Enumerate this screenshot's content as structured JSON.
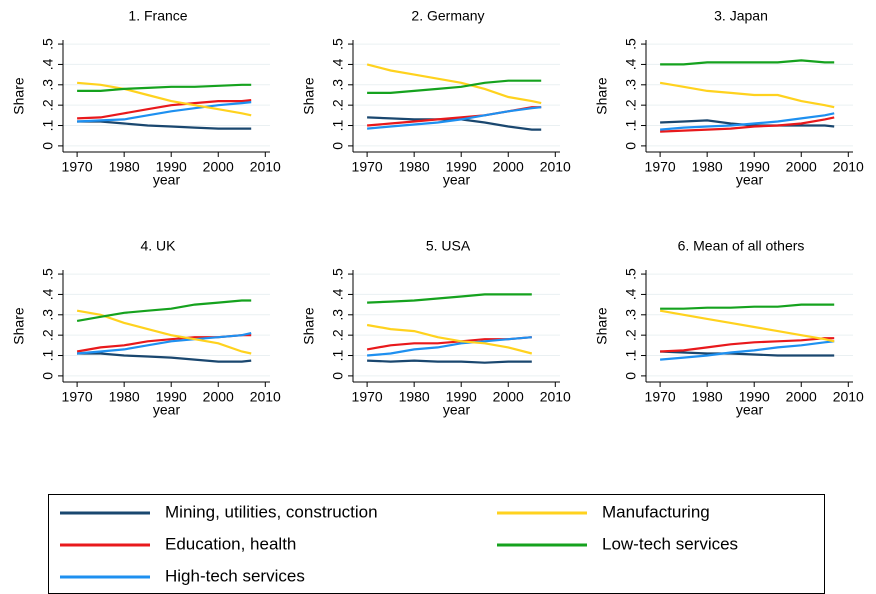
{
  "legend": {
    "items": [
      {
        "name": "Mining, utilities, construction",
        "color": "#1a476f"
      },
      {
        "name": "Education, health",
        "color": "#e8191c"
      },
      {
        "name": "High-tech services",
        "color": "#1e90f0"
      },
      {
        "name": "Manufacturing",
        "color": "#ffd21e"
      },
      {
        "name": "Low-tech services",
        "color": "#15a21e"
      }
    ]
  },
  "chart_data": [
    {
      "type": "line",
      "title": "1. France",
      "x_label": "year",
      "y_label": "Share",
      "x": [
        1970,
        1975,
        1980,
        1985,
        1990,
        1995,
        2000,
        2005,
        2007
      ],
      "xlim": [
        1967,
        2011
      ],
      "xticks": [
        1970,
        1980,
        1990,
        2000,
        2010
      ],
      "ylim": [
        -0.03,
        0.52
      ],
      "yticks": [
        0,
        {
          "value": 0.1,
          "label": ".1"
        },
        {
          "value": 0.2,
          "label": ".2"
        },
        {
          "value": 0.3,
          "label": ".3"
        },
        {
          "value": 0.4,
          "label": ".4"
        },
        {
          "value": 0.5,
          "label": ".5"
        }
      ],
      "grid": true,
      "series": [
        {
          "color": "#1a476f",
          "values": [
            0.12,
            0.12,
            0.11,
            0.1,
            0.095,
            0.09,
            0.085,
            0.085,
            0.085
          ]
        },
        {
          "color": "#e8191c",
          "values": [
            0.135,
            0.14,
            0.16,
            0.18,
            0.2,
            0.21,
            0.22,
            0.22,
            0.225
          ]
        },
        {
          "color": "#1e90f0",
          "values": [
            0.12,
            0.125,
            0.13,
            0.15,
            0.17,
            0.185,
            0.2,
            0.21,
            0.215
          ]
        },
        {
          "color": "#ffd21e",
          "values": [
            0.31,
            0.3,
            0.28,
            0.25,
            0.22,
            0.2,
            0.18,
            0.16,
            0.15
          ]
        },
        {
          "color": "#15a21e",
          "values": [
            0.27,
            0.27,
            0.28,
            0.285,
            0.29,
            0.29,
            0.295,
            0.3,
            0.3
          ]
        }
      ]
    },
    {
      "type": "line",
      "title": "2. Germany",
      "x_label": "year",
      "y_label": "Share",
      "x": [
        1970,
        1975,
        1980,
        1985,
        1990,
        1995,
        2000,
        2005,
        2007
      ],
      "xlim": [
        1967,
        2011
      ],
      "xticks": [
        1970,
        1980,
        1990,
        2000,
        2010
      ],
      "ylim": [
        -0.03,
        0.52
      ],
      "yticks": [
        0,
        {
          "value": 0.1,
          "label": ".1"
        },
        {
          "value": 0.2,
          "label": ".2"
        },
        {
          "value": 0.3,
          "label": ".3"
        },
        {
          "value": 0.4,
          "label": ".4"
        },
        {
          "value": 0.5,
          "label": ".5"
        }
      ],
      "grid": true,
      "series": [
        {
          "color": "#1a476f",
          "values": [
            0.14,
            0.135,
            0.13,
            0.13,
            0.13,
            0.115,
            0.095,
            0.08,
            0.08
          ]
        },
        {
          "color": "#e8191c",
          "values": [
            0.1,
            0.11,
            0.12,
            0.13,
            0.14,
            0.15,
            0.17,
            0.19,
            0.19
          ]
        },
        {
          "color": "#1e90f0",
          "values": [
            0.085,
            0.095,
            0.105,
            0.115,
            0.13,
            0.15,
            0.17,
            0.185,
            0.19
          ]
        },
        {
          "color": "#ffd21e",
          "values": [
            0.4,
            0.37,
            0.35,
            0.33,
            0.31,
            0.28,
            0.24,
            0.22,
            0.21
          ]
        },
        {
          "color": "#15a21e",
          "values": [
            0.26,
            0.26,
            0.27,
            0.28,
            0.29,
            0.31,
            0.32,
            0.32,
            0.32
          ]
        }
      ]
    },
    {
      "type": "line",
      "title": "3. Japan",
      "x_label": "year",
      "y_label": "Share",
      "x": [
        1970,
        1975,
        1980,
        1985,
        1990,
        1995,
        2000,
        2005,
        2007
      ],
      "xlim": [
        1967,
        2011
      ],
      "xticks": [
        1970,
        1980,
        1990,
        2000,
        2010
      ],
      "ylim": [
        -0.03,
        0.52
      ],
      "yticks": [
        0,
        {
          "value": 0.1,
          "label": ".1"
        },
        {
          "value": 0.2,
          "label": ".2"
        },
        {
          "value": 0.3,
          "label": ".3"
        },
        {
          "value": 0.4,
          "label": ".4"
        },
        {
          "value": 0.5,
          "label": ".5"
        }
      ],
      "grid": true,
      "series": [
        {
          "color": "#1a476f",
          "values": [
            0.115,
            0.12,
            0.125,
            0.11,
            0.1,
            0.1,
            0.1,
            0.1,
            0.095
          ]
        },
        {
          "color": "#e8191c",
          "values": [
            0.07,
            0.075,
            0.08,
            0.085,
            0.095,
            0.1,
            0.11,
            0.13,
            0.14
          ]
        },
        {
          "color": "#1e90f0",
          "values": [
            0.08,
            0.09,
            0.095,
            0.1,
            0.11,
            0.12,
            0.135,
            0.15,
            0.16
          ]
        },
        {
          "color": "#ffd21e",
          "values": [
            0.31,
            0.29,
            0.27,
            0.26,
            0.25,
            0.25,
            0.22,
            0.2,
            0.19
          ]
        },
        {
          "color": "#15a21e",
          "values": [
            0.4,
            0.4,
            0.41,
            0.41,
            0.41,
            0.41,
            0.42,
            0.41,
            0.41
          ]
        }
      ]
    },
    {
      "type": "line",
      "title": "4. UK",
      "x_label": "year",
      "y_label": "Share",
      "x": [
        1970,
        1975,
        1980,
        1985,
        1990,
        1995,
        2000,
        2005,
        2007
      ],
      "xlim": [
        1967,
        2011
      ],
      "xticks": [
        1970,
        1980,
        1990,
        2000,
        2010
      ],
      "ylim": [
        -0.03,
        0.52
      ],
      "yticks": [
        0,
        {
          "value": 0.1,
          "label": ".1"
        },
        {
          "value": 0.2,
          "label": ".2"
        },
        {
          "value": 0.3,
          "label": ".3"
        },
        {
          "value": 0.4,
          "label": ".4"
        },
        {
          "value": 0.5,
          "label": ".5"
        }
      ],
      "grid": true,
      "series": [
        {
          "color": "#1a476f",
          "values": [
            0.11,
            0.11,
            0.1,
            0.095,
            0.09,
            0.08,
            0.07,
            0.07,
            0.075
          ]
        },
        {
          "color": "#e8191c",
          "values": [
            0.12,
            0.14,
            0.15,
            0.17,
            0.18,
            0.19,
            0.19,
            0.2,
            0.2
          ]
        },
        {
          "color": "#1e90f0",
          "values": [
            0.11,
            0.12,
            0.13,
            0.15,
            0.17,
            0.18,
            0.19,
            0.2,
            0.21
          ]
        },
        {
          "color": "#ffd21e",
          "values": [
            0.32,
            0.3,
            0.26,
            0.23,
            0.2,
            0.18,
            0.16,
            0.12,
            0.11
          ]
        },
        {
          "color": "#15a21e",
          "values": [
            0.27,
            0.29,
            0.31,
            0.32,
            0.33,
            0.35,
            0.36,
            0.37,
            0.37
          ]
        }
      ]
    },
    {
      "type": "line",
      "title": "5. USA",
      "x_label": "year",
      "y_label": "Share",
      "x": [
        1970,
        1975,
        1980,
        1985,
        1990,
        1995,
        2000,
        2005,
        2007
      ],
      "xlim": [
        1967,
        2011
      ],
      "xticks": [
        1970,
        1980,
        1990,
        2000,
        2010
      ],
      "ylim": [
        -0.03,
        0.52
      ],
      "yticks": [
        0,
        {
          "value": 0.1,
          "label": ".1"
        },
        {
          "value": 0.2,
          "label": ".2"
        },
        {
          "value": 0.3,
          "label": ".3"
        },
        {
          "value": 0.4,
          "label": ".4"
        },
        {
          "value": 0.5,
          "label": ".5"
        }
      ],
      "grid": true,
      "series": [
        {
          "color": "#1a476f",
          "values": [
            0.075,
            0.07,
            0.075,
            0.07,
            0.07,
            0.065,
            0.07,
            0.07,
            null
          ]
        },
        {
          "color": "#e8191c",
          "values": [
            0.13,
            0.15,
            0.16,
            0.16,
            0.17,
            0.18,
            0.18,
            0.19,
            null
          ]
        },
        {
          "color": "#1e90f0",
          "values": [
            0.1,
            0.11,
            0.13,
            0.14,
            0.16,
            0.17,
            0.18,
            0.19,
            null
          ]
        },
        {
          "color": "#ffd21e",
          "values": [
            0.25,
            0.23,
            0.22,
            0.19,
            0.17,
            0.16,
            0.14,
            0.11,
            null
          ]
        },
        {
          "color": "#15a21e",
          "values": [
            0.36,
            0.365,
            0.37,
            0.38,
            0.39,
            0.4,
            0.4,
            0.4,
            null
          ]
        }
      ]
    },
    {
      "type": "line",
      "title": "6. Mean of all others",
      "x_label": "year",
      "y_label": "Share",
      "x": [
        1970,
        1975,
        1980,
        1985,
        1990,
        1995,
        2000,
        2005,
        2007
      ],
      "xlim": [
        1967,
        2011
      ],
      "xticks": [
        1970,
        1980,
        1990,
        2000,
        2010
      ],
      "ylim": [
        -0.03,
        0.52
      ],
      "yticks": [
        0,
        {
          "value": 0.1,
          "label": ".1"
        },
        {
          "value": 0.2,
          "label": ".2"
        },
        {
          "value": 0.3,
          "label": ".3"
        },
        {
          "value": 0.4,
          "label": ".4"
        },
        {
          "value": 0.5,
          "label": ".5"
        }
      ],
      "grid": true,
      "series": [
        {
          "color": "#1a476f",
          "values": [
            0.12,
            0.115,
            0.11,
            0.11,
            0.105,
            0.1,
            0.1,
            0.1,
            0.1
          ]
        },
        {
          "color": "#e8191c",
          "values": [
            0.12,
            0.125,
            0.14,
            0.155,
            0.165,
            0.17,
            0.175,
            0.185,
            0.185
          ]
        },
        {
          "color": "#1e90f0",
          "values": [
            0.08,
            0.09,
            0.1,
            0.115,
            0.125,
            0.14,
            0.15,
            0.165,
            0.17
          ]
        },
        {
          "color": "#ffd21e",
          "values": [
            0.32,
            0.3,
            0.28,
            0.26,
            0.24,
            0.22,
            0.2,
            0.18,
            0.17
          ]
        },
        {
          "color": "#15a21e",
          "values": [
            0.33,
            0.33,
            0.335,
            0.335,
            0.34,
            0.34,
            0.35,
            0.35,
            0.35
          ]
        }
      ]
    }
  ]
}
